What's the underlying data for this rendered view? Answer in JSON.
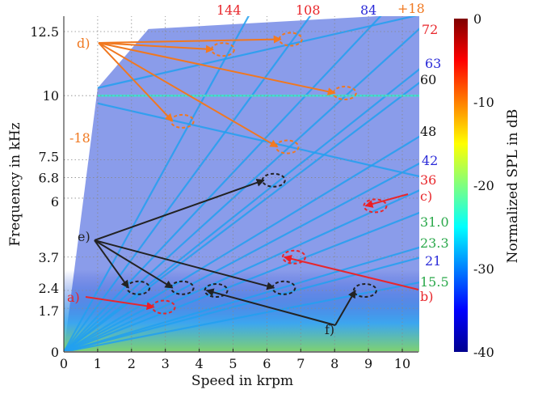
{
  "chart_data": {
    "type": "heatmap",
    "title": "",
    "xlabel": "Speed in krpm",
    "ylabel": "Frequency  in kHz",
    "xlim": [
      0,
      10.6
    ],
    "ylim": [
      0,
      13.2
    ],
    "grid": true,
    "x_ticks": [
      0,
      1,
      2,
      3,
      4,
      5,
      6,
      7,
      8,
      9,
      10
    ],
    "y_ticks": [
      0,
      1.7,
      2.4,
      3.7,
      6,
      6.8,
      7.5,
      10,
      12.5
    ],
    "y_tick_labels": [
      "0",
      "1.7",
      "2.4",
      "3.7",
      "6",
      "6.8",
      "7.5",
      "10",
      "12.5"
    ],
    "colorbar": {
      "label": "Normalized SPL in dB",
      "range": [
        -40,
        0
      ],
      "ticks": [
        0,
        -10,
        -20,
        -30,
        -40
      ],
      "tick_labels": [
        "0",
        "-10",
        "-20",
        "-30",
        "-40"
      ],
      "colormap": "jet"
    },
    "orders": [
      {
        "label": "144",
        "color": "#e8262b",
        "slope_hz_per_krpm": 2400
      },
      {
        "label": "108",
        "color": "#e8262b",
        "slope_hz_per_krpm": 1800
      },
      {
        "label": "84",
        "color": "#2a2ad8",
        "slope_hz_per_krpm": 1400
      },
      {
        "label": "+18",
        "color": "#f07820",
        "offset_khz": 10,
        "slope_hz_per_krpm": 300
      },
      {
        "label": "72",
        "color": "#e8262b",
        "slope_hz_per_krpm": 1200
      },
      {
        "label": "63",
        "color": "#2a2ad8",
        "slope_hz_per_krpm": 1050
      },
      {
        "label": "60",
        "color": "#111111",
        "slope_hz_per_krpm": 1000
      },
      {
        "label": "48",
        "color": "#111111",
        "slope_hz_per_krpm": 800
      },
      {
        "label": "42",
        "color": "#2a2ad8",
        "slope_hz_per_krpm": 700
      },
      {
        "label": "36",
        "color": "#e8262b",
        "slope_hz_per_krpm": 600
      },
      {
        "label": "31.0",
        "color": "#2aa84a",
        "slope_hz_per_krpm": 517
      },
      {
        "label": "23.3",
        "color": "#2aa84a",
        "slope_hz_per_krpm": 388
      },
      {
        "label": "21",
        "color": "#2a2ad8",
        "slope_hz_per_krpm": 350
      },
      {
        "label": "15.5",
        "color": "#2aa84a",
        "slope_hz_per_krpm": 258
      },
      {
        "label": "-18",
        "color": "#f07820",
        "offset_khz": 10,
        "slope_hz_per_krpm": -300
      }
    ],
    "constant_lines_khz": [
      10
    ],
    "annotations": [
      {
        "label": "a)",
        "color": "#e8262b",
        "targets": [
          {
            "x": 2.95,
            "y": 1.75
          }
        ]
      },
      {
        "label": "b)",
        "color": "#e8262b",
        "targets": [
          {
            "x": 6.8,
            "y": 3.7
          }
        ]
      },
      {
        "label": "c)",
        "color": "#e8262b",
        "targets": [
          {
            "x": 9.2,
            "y": 5.7
          }
        ]
      },
      {
        "label": "d)",
        "color": "#f07820",
        "targets": [
          {
            "x": 4.7,
            "y": 11.8
          },
          {
            "x": 6.7,
            "y": 12.2
          },
          {
            "x": 8.3,
            "y": 10.1
          },
          {
            "x": 3.5,
            "y": 9.0
          },
          {
            "x": 6.6,
            "y": 8.0
          }
        ]
      },
      {
        "label": "e)",
        "color": "#222222",
        "targets": [
          {
            "x": 2.2,
            "y": 2.5
          },
          {
            "x": 3.5,
            "y": 2.5
          },
          {
            "x": 6.5,
            "y": 2.5
          },
          {
            "x": 6.2,
            "y": 6.7
          }
        ]
      },
      {
        "label": "f)",
        "color": "#222222",
        "targets": [
          {
            "x": 4.5,
            "y": 2.4
          },
          {
            "x": 8.9,
            "y": 2.4
          }
        ]
      }
    ]
  }
}
